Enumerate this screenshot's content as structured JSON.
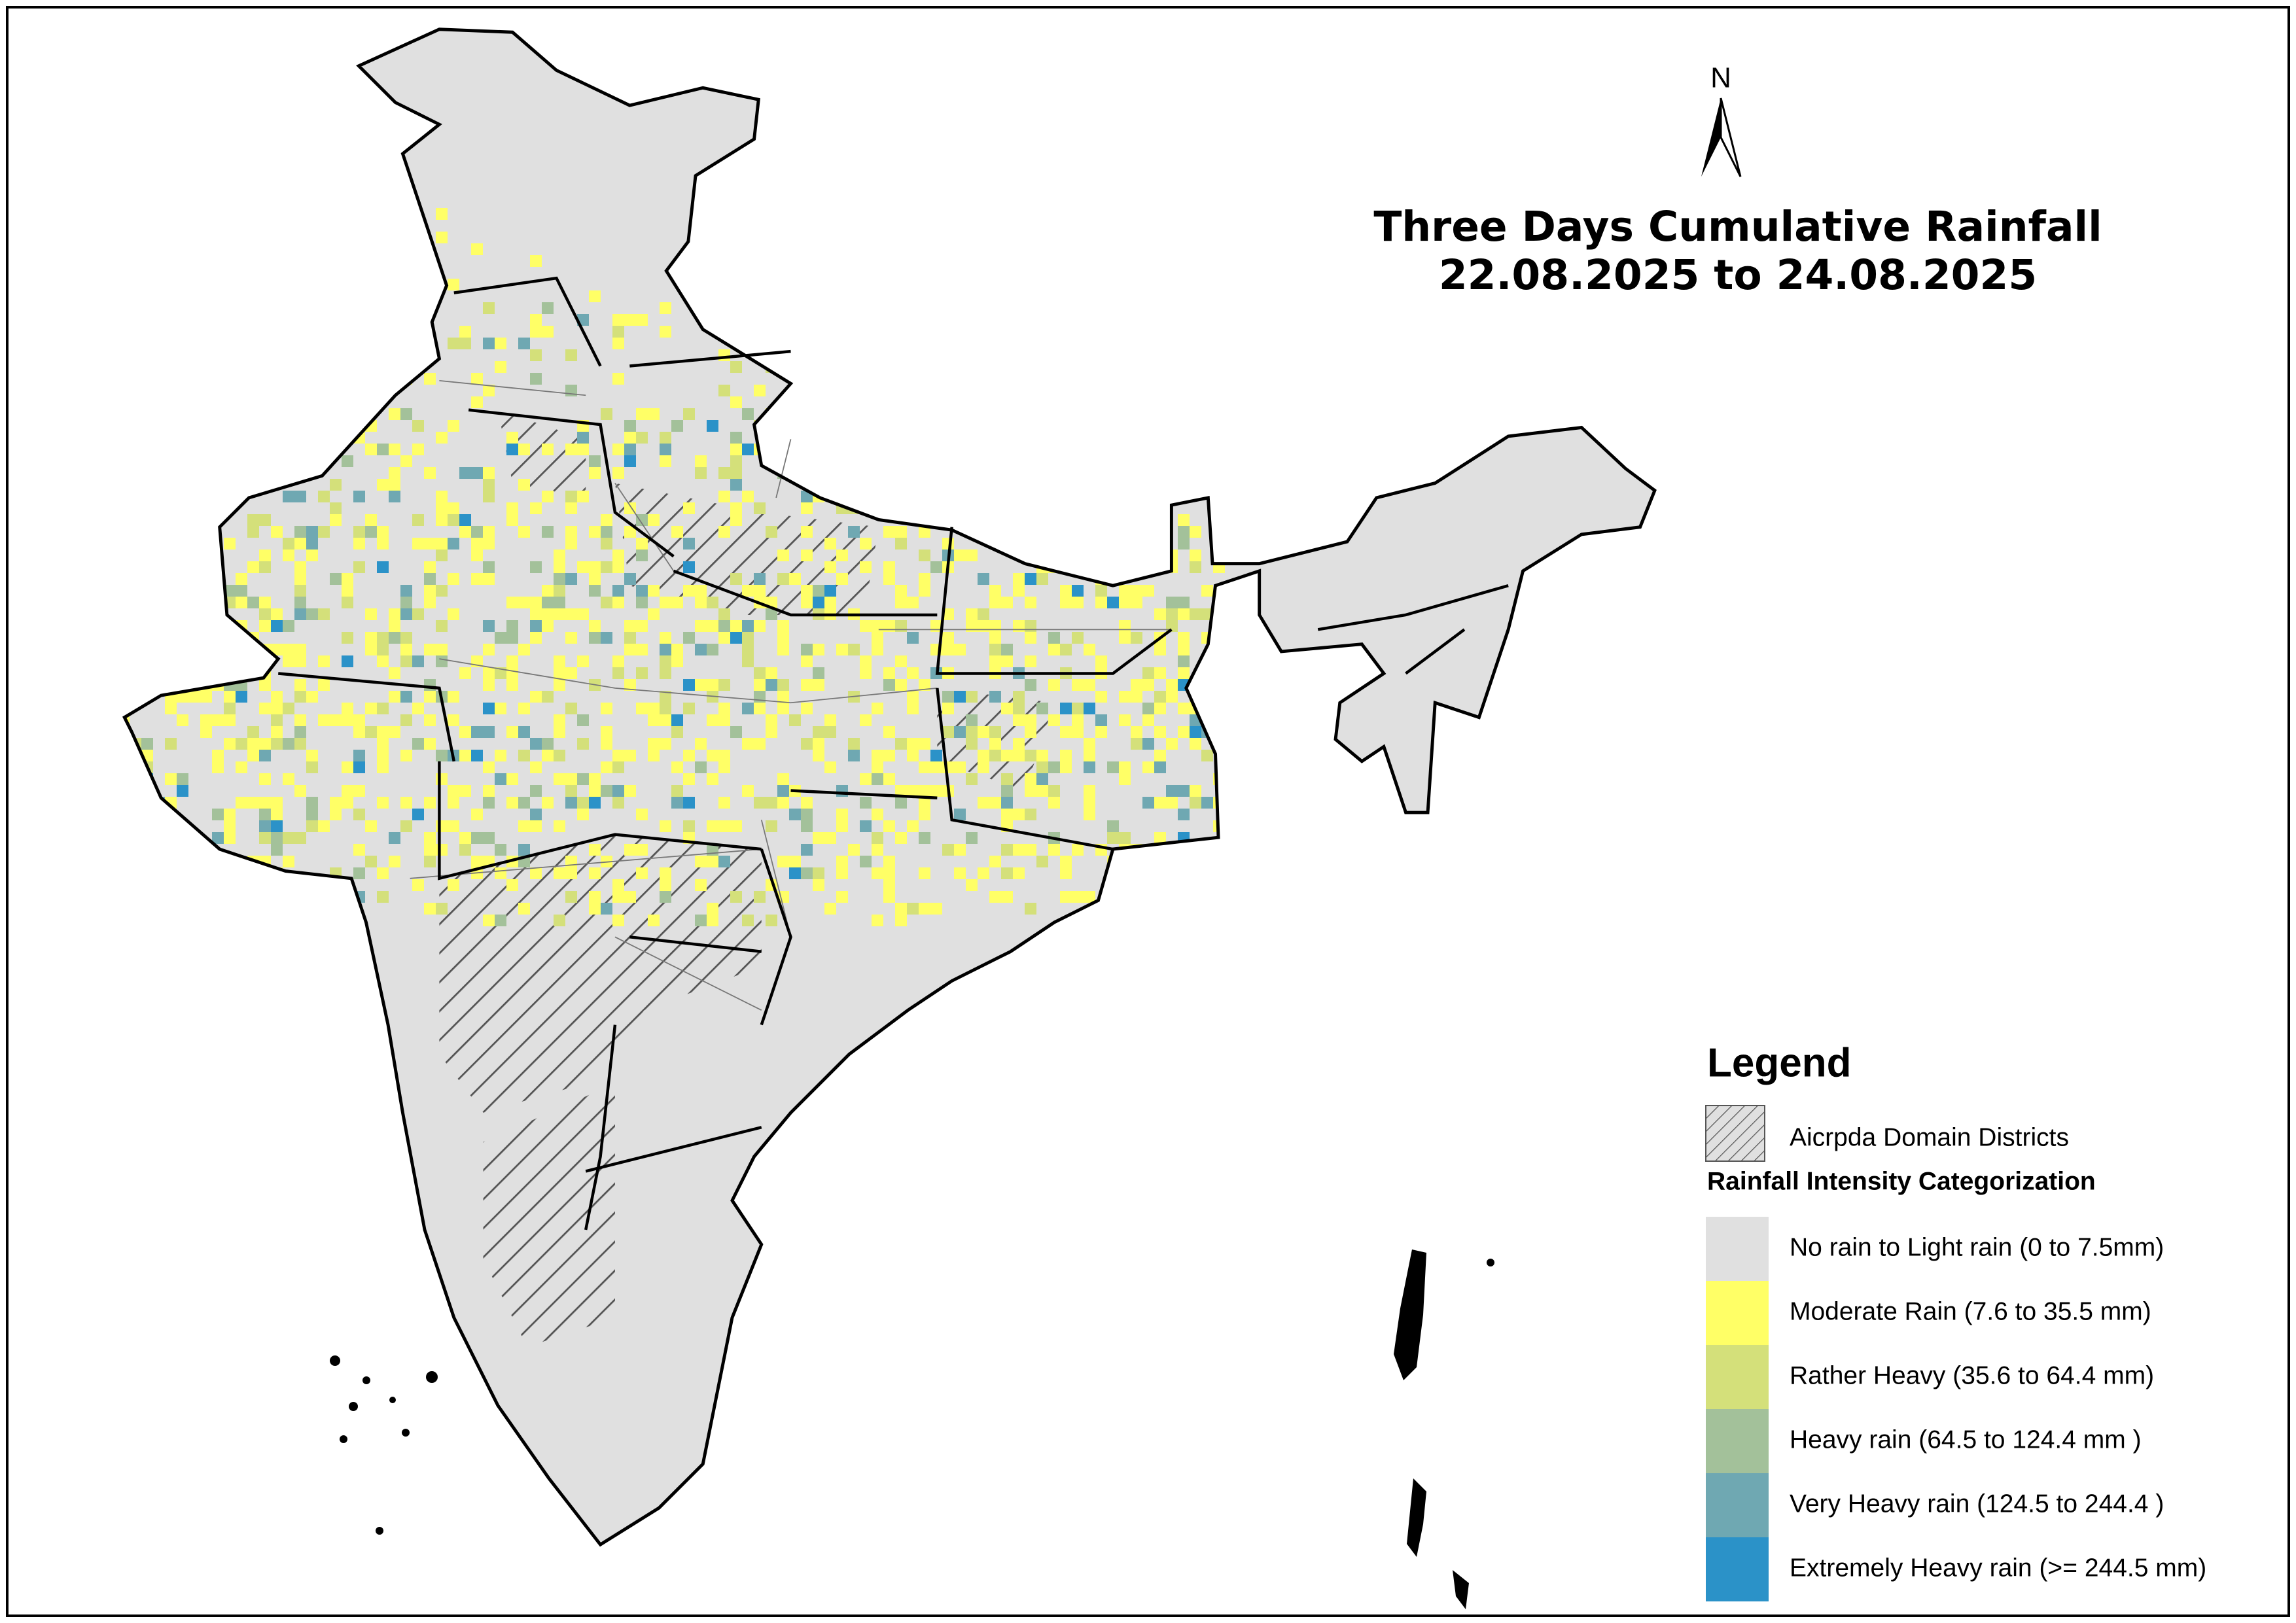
{
  "title": [
    "Three Days Cumulative Rainfall",
    "22.08.2025 to 24.08.2025"
  ],
  "north_label": "N",
  "legend": {
    "title": "Legend",
    "hatch_label": "Aicrpda Domain Districts",
    "category_title": "Rainfall Intensity Categorization",
    "categories": [
      {
        "label": "No rain to Light rain (0 to 7.5mm)",
        "color": "#e0e0e0"
      },
      {
        "label": "Moderate Rain (7.6 to 35.5 mm)",
        "color": "#ffff66"
      },
      {
        "label": "Rather Heavy (35.6 to 64.4 mm)",
        "color": "#d4e07a"
      },
      {
        "label": "Heavy rain (64.5 to 124.4 mm )",
        "color": "#a3c19a"
      },
      {
        "label": "Very Heavy rain (124.5 to 244.4 )",
        "color": "#6fa8b2"
      },
      {
        "label": "Extremely Heavy rain  (>= 244.5 mm)",
        "color": "#2b92c8"
      }
    ]
  }
}
